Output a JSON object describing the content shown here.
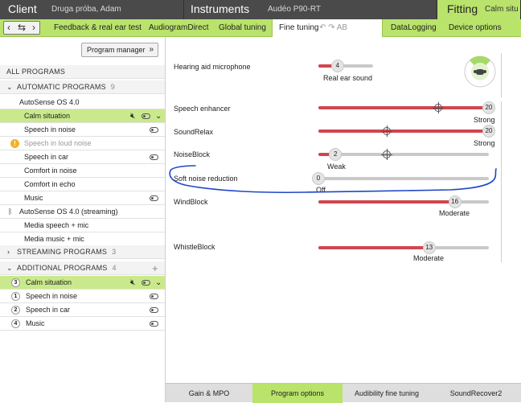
{
  "header": {
    "client_title": "Client",
    "client_name": "Druga próba, Adam",
    "instruments_title": "Instruments",
    "instrument_model": "Audéo P90-RT",
    "fitting_title": "Fitting",
    "fitting_program": "Calm situ"
  },
  "tabs": [
    {
      "label": "Feedback & real ear test"
    },
    {
      "label": "AudiogramDirect"
    },
    {
      "label": "Global tuning"
    },
    {
      "label": "Fine tuning"
    },
    {
      "label": "DataLogging"
    },
    {
      "label": "Device options"
    }
  ],
  "tab_icons": "↶ ↷ AB",
  "nav_glyphs": {
    "back": "‹",
    "swap": "⇆",
    "forward": "›"
  },
  "left": {
    "program_manager": "Program manager",
    "all_programs": "ALL PROGRAMS",
    "automatic": {
      "label": "AUTOMATIC PROGRAMS",
      "count": "9"
    },
    "autosense": "AutoSense OS 4.0",
    "programs": [
      {
        "label": "Calm situation"
      },
      {
        "label": "Speech in noise"
      },
      {
        "label": "Speech in loud noise"
      },
      {
        "label": "Speech in car"
      },
      {
        "label": "Comfort in noise"
      },
      {
        "label": "Comfort in echo"
      },
      {
        "label": "Music"
      }
    ],
    "autosense_streaming": "AutoSense OS 4.0 (streaming)",
    "streaming_programs_list": [
      {
        "label": "Media speech + mic"
      },
      {
        "label": "Media music + mic"
      }
    ],
    "streaming": {
      "label": "STREAMING PROGRAMS",
      "count": "3"
    },
    "additional": {
      "label": "ADDITIONAL PROGRAMS",
      "count": "4"
    },
    "additional_programs": [
      {
        "num": "3",
        "label": "Calm situation"
      },
      {
        "num": "1",
        "label": "Speech in noise"
      },
      {
        "num": "2",
        "label": "Speech in car"
      },
      {
        "num": "4",
        "label": "Music"
      }
    ]
  },
  "main": {
    "microphone": {
      "label": "Hearing aid microphone",
      "value": "4",
      "value_label": "Real ear sound",
      "level": 0.35
    },
    "params": [
      {
        "label": "Speech enhancer",
        "value": "20",
        "value_label": "Strong",
        "level": 1.0
      },
      {
        "label": "SoundRelax",
        "value": "20",
        "value_label": "Strong",
        "level": 1.0
      },
      {
        "label": "NoiseBlock",
        "value": "2",
        "value_label": "Weak",
        "level": 0.1
      },
      {
        "label": "Soft noise reduction",
        "value": "0",
        "value_label": "Off",
        "level": 0.0
      },
      {
        "label": "WindBlock",
        "value": "16",
        "value_label": "Moderate",
        "level": 0.8
      },
      {
        "label": "WhistleBlock",
        "value": "13",
        "value_label": "Moderate",
        "level": 0.65
      }
    ]
  },
  "bottom_tabs": [
    {
      "label": "Gain & MPO"
    },
    {
      "label": "Program options"
    },
    {
      "label": "Audibility fine tuning"
    },
    {
      "label": "SoundRecover2"
    }
  ],
  "colors": {
    "accent": "#b9e36b",
    "slider_fill": "#d0474f",
    "annotation": "#1f47c8"
  }
}
